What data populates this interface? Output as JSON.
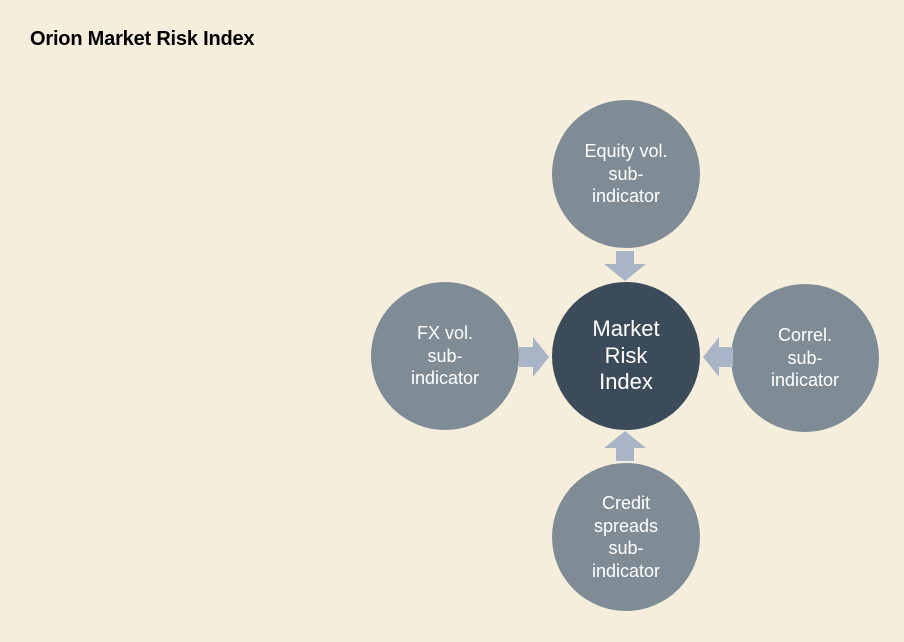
{
  "page": {
    "title": "Orion Market Risk Index"
  },
  "diagram": {
    "center": {
      "label": "Market\nRisk\nIndex"
    },
    "nodes": {
      "top": {
        "label": "Equity vol.\nsub-\nindicator"
      },
      "left": {
        "label": "FX vol.\nsub-\nindicator"
      },
      "right": {
        "label": "Correl.\nsub-\nindicator"
      },
      "bottom": {
        "label": "Credit\nspreads\nsub-\nindicator"
      }
    }
  },
  "colors": {
    "background": "#f5eedd",
    "sub_node": "#7f8c95",
    "center_node": "#3c4b59",
    "arrow": "#a9b5c6",
    "text": "#ffffff"
  }
}
